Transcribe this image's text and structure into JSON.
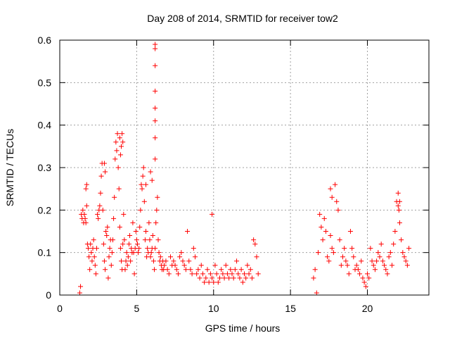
{
  "chart_data": {
    "type": "scatter",
    "title": "Day 208 of 2014, SRMTID for receiver tow2",
    "xlabel": "GPS time / hours",
    "ylabel": "SRMTID / TECUs",
    "xlim": [
      0,
      24
    ],
    "ylim": [
      0,
      0.6
    ],
    "xticks": [
      0,
      5,
      10,
      15,
      20
    ],
    "xtick_labels": [
      "0",
      "5",
      "10",
      "15",
      "20"
    ],
    "yticks": [
      0,
      0.1,
      0.2,
      0.3,
      0.4,
      0.5,
      0.6
    ],
    "ytick_labels": [
      "0",
      "0.1",
      "0.2",
      "0.3",
      "0.4",
      "0.5",
      "0.6"
    ],
    "grid": true,
    "marker": "+",
    "colors": {
      "series": "#ff0000",
      "grid": "#a0a0a0",
      "axis": "#000000"
    },
    "series": [
      {
        "name": "SRMTID",
        "x": [
          1.3,
          1.35,
          1.4,
          1.45,
          1.5,
          1.55,
          1.6,
          1.65,
          1.7,
          1.75,
          1.8,
          1.85,
          1.9,
          1.95,
          2.0,
          2.05,
          2.1,
          2.15,
          2.2,
          2.25,
          2.3,
          2.35,
          2.4,
          2.45,
          2.5,
          2.55,
          2.6,
          2.65,
          2.7,
          2.75,
          2.8,
          2.85,
          2.9,
          2.95,
          3.0,
          3.05,
          3.1,
          3.15,
          3.2,
          3.25,
          3.3,
          3.35,
          3.4,
          3.45,
          3.5,
          3.55,
          3.6,
          3.65,
          3.7,
          3.75,
          3.8,
          3.85,
          3.9,
          3.95,
          4.0,
          4.05,
          4.1,
          4.15,
          4.2,
          4.25,
          4.3,
          4.35,
          4.4,
          4.45,
          4.5,
          4.55,
          4.6,
          4.65,
          4.7,
          4.75,
          4.8,
          4.85,
          4.9,
          4.95,
          5.0,
          5.05,
          5.1,
          5.15,
          5.2,
          5.25,
          5.3,
          5.35,
          5.4,
          5.45,
          5.5,
          5.55,
          5.6,
          5.65,
          5.7,
          5.75,
          5.8,
          5.85,
          5.9,
          5.95,
          6.0,
          6.05,
          6.1,
          6.15,
          6.2,
          6.25,
          6.3,
          6.35,
          6.4,
          6.45,
          6.5,
          6.55,
          6.6,
          6.65,
          6.7,
          6.75,
          6.8,
          6.9,
          7.0,
          7.1,
          7.2,
          7.3,
          7.4,
          7.5,
          7.6,
          7.7,
          7.8,
          7.9,
          8.0,
          8.1,
          8.2,
          8.3,
          8.4,
          8.5,
          8.6,
          8.7,
          8.8,
          8.9,
          9.0,
          9.1,
          9.2,
          9.3,
          9.4,
          9.5,
          9.6,
          9.7,
          9.8,
          9.9,
          10.0,
          10.1,
          10.2,
          10.3,
          10.4,
          10.5,
          10.6,
          10.7,
          10.8,
          10.9,
          11.0,
          11.1,
          11.2,
          11.3,
          11.4,
          11.5,
          11.6,
          11.7,
          11.8,
          11.9,
          12.0,
          12.1,
          12.2,
          12.3,
          12.4,
          12.5,
          12.6,
          12.7,
          12.8,
          12.9,
          16.5,
          16.6,
          16.7,
          16.8,
          16.9,
          17.0,
          17.1,
          17.2,
          17.3,
          17.4,
          17.5,
          17.6,
          17.7,
          17.8,
          17.9,
          18.0,
          18.1,
          18.2,
          18.3,
          18.4,
          18.5,
          18.6,
          18.7,
          18.8,
          18.9,
          19.0,
          19.1,
          19.2,
          19.3,
          19.4,
          19.5,
          19.6,
          19.7,
          19.8,
          19.9,
          20.0,
          20.1,
          20.2,
          20.3,
          20.4,
          20.5,
          20.6,
          20.7,
          20.8,
          20.9,
          21.0,
          21.1,
          21.2,
          21.3,
          21.4,
          21.5,
          21.6,
          21.7,
          21.8,
          21.9,
          22.0,
          22.1,
          22.2,
          22.3,
          22.4,
          22.5,
          22.6,
          22.7,
          6.2,
          6.2,
          6.2,
          6.2,
          6.2,
          6.2,
          6.2,
          6.2,
          4.0,
          4.05,
          4.1,
          3.95,
          3.9,
          2.9,
          2.95,
          1.7,
          1.75,
          9.9,
          17.6,
          17.7,
          22.0,
          22.1,
          22.05,
          6.0,
          5.9,
          5.6
        ],
        "y": [
          0.005,
          0.02,
          0.19,
          0.18,
          0.2,
          0.17,
          0.19,
          0.18,
          0.17,
          0.26,
          0.12,
          0.11,
          0.09,
          0.06,
          0.12,
          0.1,
          0.08,
          0.11,
          0.13,
          0.09,
          0.07,
          0.05,
          0.11,
          0.19,
          0.18,
          0.2,
          0.21,
          0.24,
          0.28,
          0.31,
          0.2,
          0.12,
          0.08,
          0.06,
          0.15,
          0.14,
          0.16,
          0.04,
          0.09,
          0.11,
          0.13,
          0.07,
          0.1,
          0.13,
          0.18,
          0.23,
          0.32,
          0.36,
          0.34,
          0.38,
          0.3,
          0.25,
          0.16,
          0.11,
          0.08,
          0.06,
          0.12,
          0.19,
          0.13,
          0.06,
          0.08,
          0.1,
          0.07,
          0.09,
          0.12,
          0.14,
          0.08,
          0.11,
          0.1,
          0.17,
          0.1,
          0.05,
          0.11,
          0.15,
          0.13,
          0.12,
          0.1,
          0.11,
          0.16,
          0.2,
          0.26,
          0.25,
          0.28,
          0.3,
          0.22,
          0.13,
          0.15,
          0.09,
          0.11,
          0.1,
          0.17,
          0.13,
          0.09,
          0.1,
          0.11,
          0.14,
          0.08,
          0.06,
          0.11,
          0.17,
          0.2,
          0.23,
          0.13,
          0.1,
          0.08,
          0.09,
          0.07,
          0.06,
          0.08,
          0.06,
          0.07,
          0.08,
          0.06,
          0.05,
          0.09,
          0.07,
          0.08,
          0.07,
          0.06,
          0.05,
          0.09,
          0.1,
          0.08,
          0.07,
          0.06,
          0.15,
          0.08,
          0.06,
          0.05,
          0.11,
          0.09,
          0.05,
          0.06,
          0.04,
          0.07,
          0.05,
          0.03,
          0.04,
          0.06,
          0.03,
          0.05,
          0.04,
          0.03,
          0.07,
          0.05,
          0.03,
          0.04,
          0.06,
          0.05,
          0.04,
          0.07,
          0.05,
          0.04,
          0.06,
          0.05,
          0.04,
          0.06,
          0.08,
          0.05,
          0.04,
          0.06,
          0.03,
          0.05,
          0.04,
          0.07,
          0.05,
          0.06,
          0.04,
          0.13,
          0.12,
          0.09,
          0.05,
          0.04,
          0.06,
          0.005,
          0.1,
          0.19,
          0.16,
          0.13,
          0.18,
          0.15,
          0.09,
          0.08,
          0.14,
          0.11,
          0.1,
          0.26,
          0.22,
          0.2,
          0.13,
          0.07,
          0.09,
          0.11,
          0.08,
          0.07,
          0.05,
          0.15,
          0.11,
          0.09,
          0.06,
          0.07,
          0.06,
          0.05,
          0.08,
          0.04,
          0.03,
          0.02,
          0.05,
          0.04,
          0.11,
          0.08,
          0.07,
          0.06,
          0.08,
          0.1,
          0.09,
          0.12,
          0.08,
          0.07,
          0.06,
          0.05,
          0.09,
          0.1,
          0.07,
          0.12,
          0.15,
          0.22,
          0.21,
          0.17,
          0.13,
          0.1,
          0.09,
          0.08,
          0.07,
          0.11,
          0.59,
          0.54,
          0.48,
          0.44,
          0.41,
          0.37,
          0.32,
          0.58,
          0.35,
          0.38,
          0.36,
          0.33,
          0.37,
          0.31,
          0.29,
          0.25,
          0.21,
          0.19,
          0.25,
          0.23,
          0.24,
          0.22,
          0.2,
          0.27,
          0.29,
          0.26
        ]
      }
    ]
  }
}
